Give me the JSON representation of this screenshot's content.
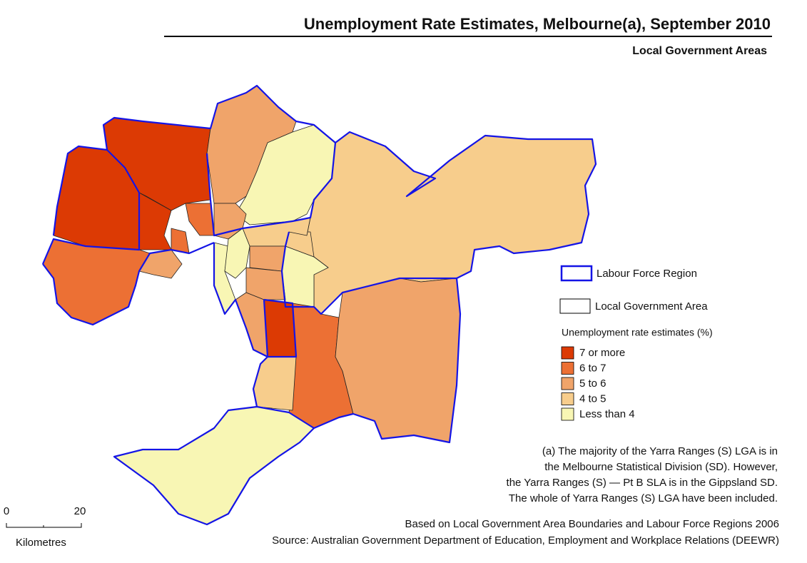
{
  "title": "Unemployment Rate Estimates, Melbourne(a), September 2010",
  "subtitle": "Local Government Areas",
  "legend": {
    "boundaries": [
      {
        "label": "Labour Force Region",
        "color": "#1414e6"
      },
      {
        "label": "Local Government Area",
        "color": "#000000"
      }
    ],
    "heading": "Unemployment rate estimates (%)",
    "classes": [
      {
        "label": "7 or more",
        "color": "#dc3a04"
      },
      {
        "label": "6 to 7",
        "color": "#ec7034"
      },
      {
        "label": "5 to 6",
        "color": "#f0a46a"
      },
      {
        "label": "4 to 5",
        "color": "#f7cd8c"
      },
      {
        "label": "Less than 4",
        "color": "#f8f6b4"
      }
    ]
  },
  "footnote": [
    "(a) The majority of the Yarra Ranges (S) LGA is in",
    "the Melbourne Statistical Division (SD). However,",
    "the Yarra Ranges (S) — Pt B SLA is in the Gippsland SD.",
    "The whole of Yarra Ranges (S) LGA have been included."
  ],
  "scale": {
    "ticks": [
      0,
      20
    ],
    "unit": "Kilometres"
  },
  "source": [
    "Based on Local Government Area Boundaries and Labour Force Regions 2006",
    "Source: Australian Government Department of Education, Employment and Workplace Relations (DEEWR)"
  ]
}
